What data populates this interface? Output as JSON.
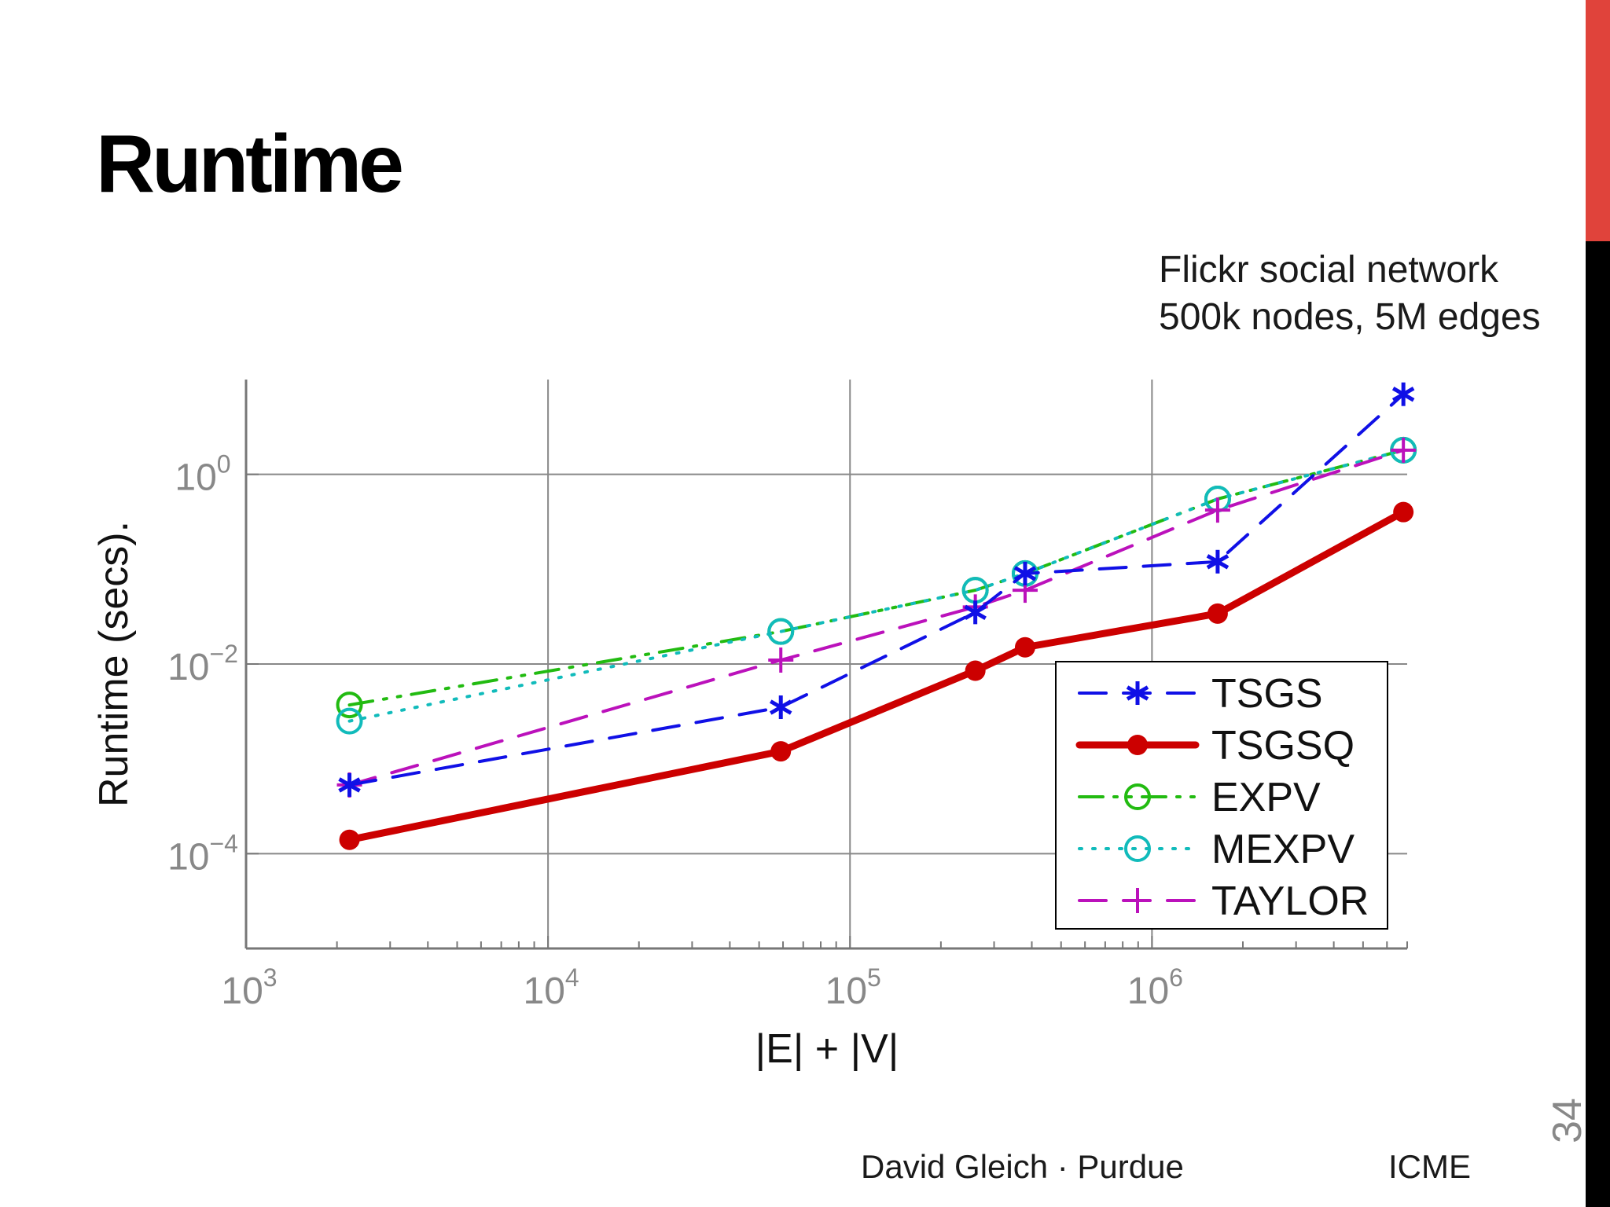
{
  "slide": {
    "title": "Runtime",
    "subtitle_lines": [
      "Flickr social network",
      "500k nodes, 5M edges"
    ],
    "footer_author": "David Gleich · Purdue",
    "footer_org": "ICME",
    "page_number": "34",
    "accent_color": "#e0433b"
  },
  "chart_data": {
    "type": "line",
    "title": "",
    "xlabel": "|E| + |V|",
    "ylabel": "Runtime (secs).",
    "xscale": "log",
    "yscale": "log",
    "xlim": [
      1000,
      7000000
    ],
    "ylim": [
      1e-05,
      10
    ],
    "xticks": [
      {
        "value": 1000,
        "base": "10",
        "exp": "3"
      },
      {
        "value": 10000,
        "base": "10",
        "exp": "4"
      },
      {
        "value": 100000,
        "base": "10",
        "exp": "5"
      },
      {
        "value": 1000000,
        "base": "10",
        "exp": "6"
      }
    ],
    "yticks": [
      {
        "value": 0.0001,
        "base": "10",
        "exp": "−4"
      },
      {
        "value": 0.01,
        "base": "10",
        "exp": "−2"
      },
      {
        "value": 1,
        "base": "10",
        "exp": "0"
      }
    ],
    "grid": true,
    "legend_position": "bottom-right",
    "series": [
      {
        "name": "TSGS",
        "color": "#1010e6",
        "line_style": "dashed",
        "marker": "asterisk",
        "x": [
          2200,
          59000,
          260000,
          380000,
          1650000,
          6800000
        ],
        "y": [
          0.00053,
          0.0035,
          0.035,
          0.09,
          0.12,
          7.0
        ]
      },
      {
        "name": "TSGSQ",
        "color": "#cc0000",
        "line_style": "solid",
        "marker": "filled-circle",
        "x": [
          2200,
          59000,
          260000,
          380000,
          1650000,
          6800000
        ],
        "y": [
          0.00014,
          0.0012,
          0.0085,
          0.015,
          0.034,
          0.4
        ]
      },
      {
        "name": "EXPV",
        "color": "#22bb11",
        "line_style": "dash-dot",
        "marker": "circle",
        "x": [
          2200,
          59000,
          260000,
          380000,
          1650000,
          6800000
        ],
        "y": [
          0.0037,
          0.022,
          0.06,
          0.09,
          0.55,
          1.8
        ]
      },
      {
        "name": "MEXPV",
        "color": "#11bbbb",
        "line_style": "dotted",
        "marker": "circle",
        "x": [
          2200,
          59000,
          260000,
          380000,
          1650000,
          6800000
        ],
        "y": [
          0.0025,
          0.022,
          0.06,
          0.09,
          0.55,
          1.8
        ]
      },
      {
        "name": "TAYLOR",
        "color": "#bb11bb",
        "line_style": "dashed",
        "marker": "plus",
        "x": [
          2200,
          59000,
          260000,
          380000,
          1650000,
          6800000
        ],
        "y": [
          0.00053,
          0.011,
          0.04,
          0.06,
          0.42,
          1.8
        ]
      }
    ]
  }
}
